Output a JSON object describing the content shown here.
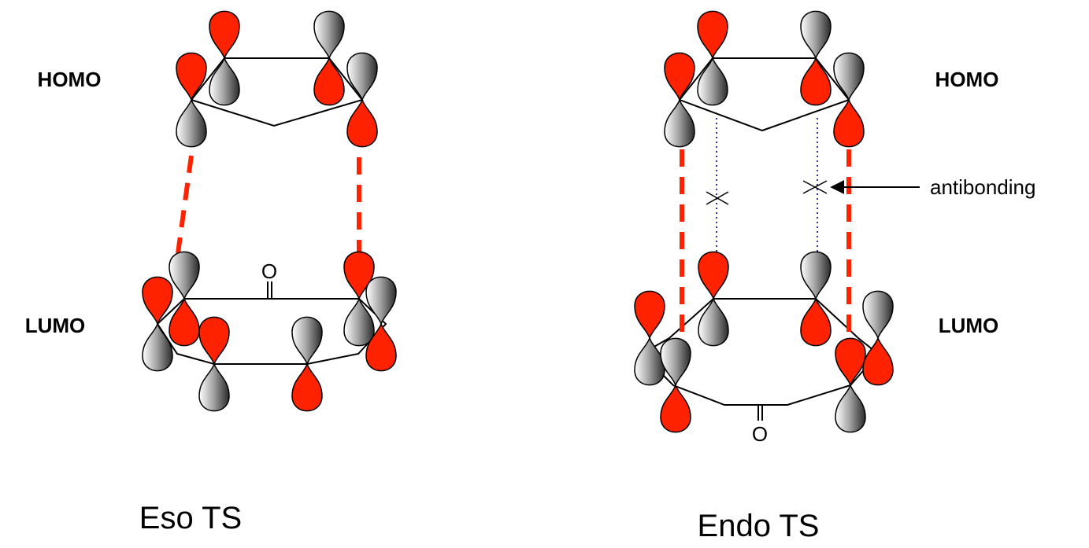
{
  "exo_panel": {
    "homo_label": "HOMO",
    "lumo_label": "LUMO",
    "carbonyl_o": "O",
    "caption": "Eso TS"
  },
  "endo_panel": {
    "homo_label": "HOMO",
    "lumo_label": "LUMO",
    "carbonyl_o": "O",
    "annotation": "antibonding",
    "caption": "Endo TS"
  },
  "colors": {
    "phase_red": "#ff2200",
    "phase_gray": "#9a9a9a",
    "bond_line": "#000000",
    "bonding_dash": "#ff2200",
    "secondary_dotted": "#3333aa"
  }
}
